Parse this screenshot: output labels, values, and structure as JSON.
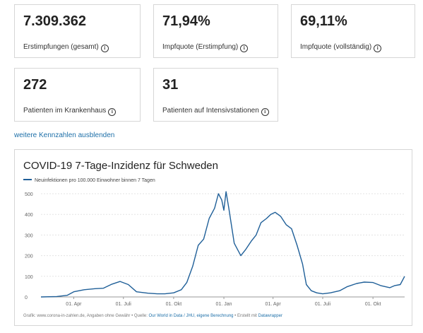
{
  "stats": [
    {
      "value": "7.309.362",
      "label": "Erstimpfungen (gesamt)"
    },
    {
      "value": "71,94%",
      "label": "Impfquote (Erstimpfung)"
    },
    {
      "value": "69,11%",
      "label": "Impfquote (vollständig)"
    },
    {
      "value": "272",
      "label": "Patienten im Krankenhaus"
    },
    {
      "value": "31",
      "label": "Patienten auf Intensivstationen"
    }
  ],
  "info_icon": "info-circle-icon",
  "more_link": "weitere Kennzahlen ausblenden",
  "chart": {
    "title": "COVID-19 7-Tage-Inzidenz für Schweden",
    "legend": "Neuinfektionen pro 100.000 Einwohner binnen 7 Tagen",
    "footer_prefix": "Grafik: www.corona-in-zahlen.de, Angaben ohne Gewähr • Quelle:",
    "footer_source": "Our World in Data / JHU, eigene Berechnung",
    "footer_mid": "• Erstellt mit",
    "footer_tool": "Datawrapper"
  },
  "chart_data": {
    "type": "line",
    "title": "COVID-19 7-Tage-Inzidenz für Schweden",
    "series": [
      {
        "name": "Neuinfektionen pro 100.000 Einwohner binnen 7 Tagen",
        "color": "#1f5f98",
        "x": [
          "2020-02-01",
          "2020-03-01",
          "2020-03-20",
          "2020-04-01",
          "2020-04-20",
          "2020-05-10",
          "2020-05-25",
          "2020-06-10",
          "2020-06-25",
          "2020-07-10",
          "2020-07-25",
          "2020-08-15",
          "2020-09-01",
          "2020-09-15",
          "2020-10-01",
          "2020-10-15",
          "2020-10-25",
          "2020-11-05",
          "2020-11-15",
          "2020-11-25",
          "2020-12-05",
          "2020-12-15",
          "2020-12-22",
          "2020-12-28",
          "2021-01-01",
          "2021-01-05",
          "2021-01-10",
          "2021-01-20",
          "2021-02-01",
          "2021-02-10",
          "2021-02-20",
          "2021-03-01",
          "2021-03-10",
          "2021-03-20",
          "2021-03-28",
          "2021-04-05",
          "2021-04-15",
          "2021-04-25",
          "2021-05-05",
          "2021-05-15",
          "2021-05-25",
          "2021-06-01",
          "2021-06-10",
          "2021-06-20",
          "2021-07-01",
          "2021-07-15",
          "2021-08-01",
          "2021-08-15",
          "2021-09-01",
          "2021-09-15",
          "2021-10-01",
          "2021-10-15",
          "2021-11-01",
          "2021-11-10",
          "2021-11-20",
          "2021-11-28"
        ],
        "values": [
          0,
          2,
          8,
          25,
          35,
          40,
          42,
          62,
          75,
          60,
          25,
          18,
          15,
          15,
          20,
          35,
          70,
          150,
          250,
          280,
          380,
          430,
          500,
          470,
          420,
          510,
          430,
          260,
          200,
          230,
          270,
          300,
          360,
          380,
          400,
          410,
          390,
          350,
          330,
          250,
          160,
          60,
          30,
          20,
          15,
          20,
          30,
          50,
          65,
          72,
          70,
          55,
          45,
          55,
          60,
          100
        ]
      }
    ],
    "x_ticks": [
      "01. Apr",
      "01. Juli",
      "01. Okt",
      "01. Jan",
      "01. Apr",
      "01. Juli",
      "01. Okt"
    ],
    "ylim": [
      0,
      500
    ],
    "y_ticks": [
      0,
      100,
      200,
      300,
      400,
      500
    ],
    "grid": true,
    "legend_position": "top-left"
  }
}
